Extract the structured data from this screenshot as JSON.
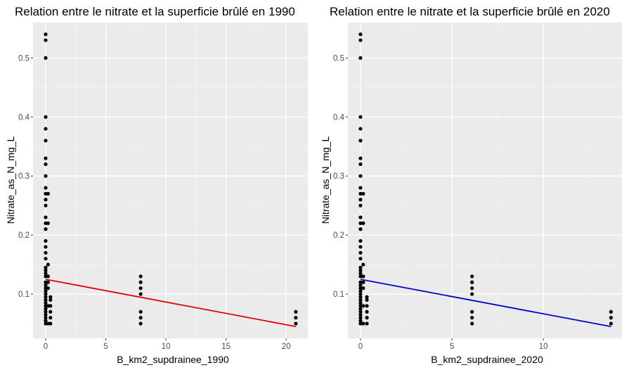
{
  "chart_data": [
    {
      "type": "scatter",
      "title": "Relation entre le nitrate et la superficie brûlé en 1990",
      "xlabel": "B_km2_supdrainee_1990",
      "ylabel": "Nitrate_as_N_mg_L",
      "xlim": [
        -1.05,
        21.8
      ],
      "ylim": [
        0.025,
        0.56
      ],
      "xticks": [
        0,
        5,
        10,
        15,
        20
      ],
      "yticks": [
        0.1,
        0.2,
        0.3,
        0.4,
        0.5
      ],
      "grid": true,
      "background": "#ebebeb",
      "point_color": "#000000",
      "trend_color": "#e00000",
      "series": [
        {
          "x": [
            0,
            0,
            0,
            0,
            0,
            0,
            0,
            0,
            0,
            0,
            0,
            0,
            0,
            0,
            0,
            0,
            0,
            0,
            0,
            0,
            0,
            0,
            0,
            0,
            0,
            0,
            0,
            0,
            0,
            0,
            0,
            0,
            0,
            0,
            0,
            0,
            0,
            0,
            0,
            0.2,
            0.2,
            0.2,
            0.2,
            0.2,
            0.2,
            0.2,
            0.2,
            0.4,
            0.4,
            0.4,
            0.4,
            0.4,
            0.4,
            7.9,
            7.9,
            7.9,
            7.9,
            7.9,
            7.9,
            7.9,
            20.8,
            20.8,
            20.8
          ],
          "y": [
            0.54,
            0.53,
            0.5,
            0.4,
            0.38,
            0.36,
            0.33,
            0.32,
            0.3,
            0.28,
            0.27,
            0.26,
            0.25,
            0.23,
            0.22,
            0.21,
            0.19,
            0.18,
            0.17,
            0.16,
            0.14,
            0.13,
            0.12,
            0.11,
            0.1,
            0.09,
            0.08,
            0.07,
            0.06,
            0.05,
            0.145,
            0.135,
            0.115,
            0.105,
            0.095,
            0.085,
            0.075,
            0.065,
            0.055,
            0.27,
            0.22,
            0.15,
            0.13,
            0.12,
            0.11,
            0.08,
            0.05,
            0.09,
            0.08,
            0.07,
            0.06,
            0.05,
            0.095,
            0.13,
            0.12,
            0.11,
            0.1,
            0.07,
            0.06,
            0.05,
            0.07,
            0.06,
            0.05
          ]
        }
      ],
      "trend": {
        "x": [
          0,
          20.8
        ],
        "y": [
          0.125,
          0.045
        ]
      }
    },
    {
      "type": "scatter",
      "title": "Relation entre le nitrate et la superficie brûlé en 2020",
      "xlabel": "B_km2_supdrainee_2020",
      "ylabel": "Nitrate_as_N_mg_L",
      "xlim": [
        -0.69,
        14.3
      ],
      "ylim": [
        0.025,
        0.56
      ],
      "xticks": [
        0,
        5,
        10
      ],
      "yticks": [
        0.1,
        0.2,
        0.3,
        0.4,
        0.5
      ],
      "grid": true,
      "background": "#ebebeb",
      "point_color": "#000000",
      "trend_color": "#0000cc",
      "series": [
        {
          "x": [
            0,
            0,
            0,
            0,
            0,
            0,
            0,
            0,
            0,
            0,
            0,
            0,
            0,
            0,
            0,
            0,
            0,
            0,
            0,
            0,
            0,
            0,
            0,
            0,
            0,
            0,
            0,
            0,
            0,
            0,
            0,
            0,
            0,
            0,
            0,
            0,
            0,
            0,
            0,
            0.15,
            0.15,
            0.15,
            0.15,
            0.15,
            0.15,
            0.15,
            0.15,
            0.35,
            0.35,
            0.35,
            0.35,
            0.35,
            0.35,
            6.1,
            6.1,
            6.1,
            6.1,
            6.1,
            6.1,
            6.1,
            13.7,
            13.7,
            13.7
          ],
          "y": [
            0.54,
            0.53,
            0.5,
            0.4,
            0.38,
            0.36,
            0.33,
            0.32,
            0.3,
            0.28,
            0.27,
            0.26,
            0.25,
            0.23,
            0.22,
            0.21,
            0.19,
            0.18,
            0.17,
            0.16,
            0.14,
            0.13,
            0.12,
            0.11,
            0.1,
            0.09,
            0.08,
            0.07,
            0.06,
            0.05,
            0.145,
            0.135,
            0.115,
            0.105,
            0.095,
            0.085,
            0.075,
            0.065,
            0.055,
            0.27,
            0.22,
            0.15,
            0.13,
            0.12,
            0.11,
            0.08,
            0.05,
            0.09,
            0.08,
            0.07,
            0.06,
            0.05,
            0.095,
            0.13,
            0.12,
            0.11,
            0.1,
            0.07,
            0.06,
            0.05,
            0.07,
            0.06,
            0.05
          ]
        }
      ],
      "trend": {
        "x": [
          0,
          13.7
        ],
        "y": [
          0.125,
          0.045
        ]
      }
    }
  ]
}
